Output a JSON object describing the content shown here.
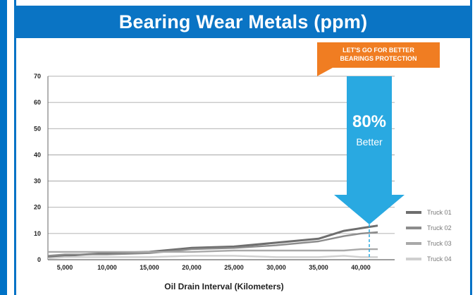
{
  "chart_data": {
    "type": "line",
    "title": "Bearing Wear Metals (ppm)",
    "xlabel": "Oil Drain Interval (Kilometers)",
    "ylabel": "",
    "x": [
      3000,
      5000,
      10000,
      15000,
      20000,
      25000,
      30000,
      35000,
      38000,
      40000,
      42000
    ],
    "x_ticks": [
      5000,
      10000,
      15000,
      20000,
      25000,
      30000,
      35000,
      40000
    ],
    "x_tick_labels": [
      "5,000",
      "10,000",
      "15,000",
      "20,000",
      "25,000",
      "30,000",
      "35,000",
      "40,000"
    ],
    "y_ticks": [
      0,
      10,
      20,
      30,
      40,
      50,
      60,
      70
    ],
    "xlim": [
      3000,
      44000
    ],
    "ylim": [
      0,
      70
    ],
    "grid": true,
    "legend_position": "right",
    "series": [
      {
        "name": "Truck 01",
        "color": "#6e6e6e",
        "values": [
          1,
          1.5,
          2.5,
          3,
          4.5,
          5,
          6.5,
          8,
          11,
          12,
          13
        ]
      },
      {
        "name": "Truck 02",
        "color": "#8c8c8c",
        "values": [
          1.5,
          2,
          2,
          2.5,
          4,
          4.5,
          5.5,
          7,
          9,
          10,
          10.5
        ]
      },
      {
        "name": "Truck 03",
        "color": "#a9a9a9",
        "values": [
          3,
          3,
          3,
          3,
          3,
          3.5,
          3.5,
          3.5,
          3.5,
          4,
          4
        ]
      },
      {
        "name": "Truck 04",
        "color": "#cfcfcf",
        "values": [
          0.5,
          1,
          1,
          1,
          1.5,
          1.5,
          1,
          1,
          1.5,
          1,
          1
        ]
      }
    ],
    "annotations": {
      "callout": [
        "LET'S GO FOR BETTER",
        "BEARINGS PROTECTION"
      ],
      "arrow_value": "80%",
      "arrow_label": "Better",
      "marker_x": 41000
    }
  },
  "colors": {
    "title_bar": "#0a74c4",
    "callout": "#f07d22",
    "arrow": "#29a9e1",
    "grid": "#9a9a9a"
  }
}
